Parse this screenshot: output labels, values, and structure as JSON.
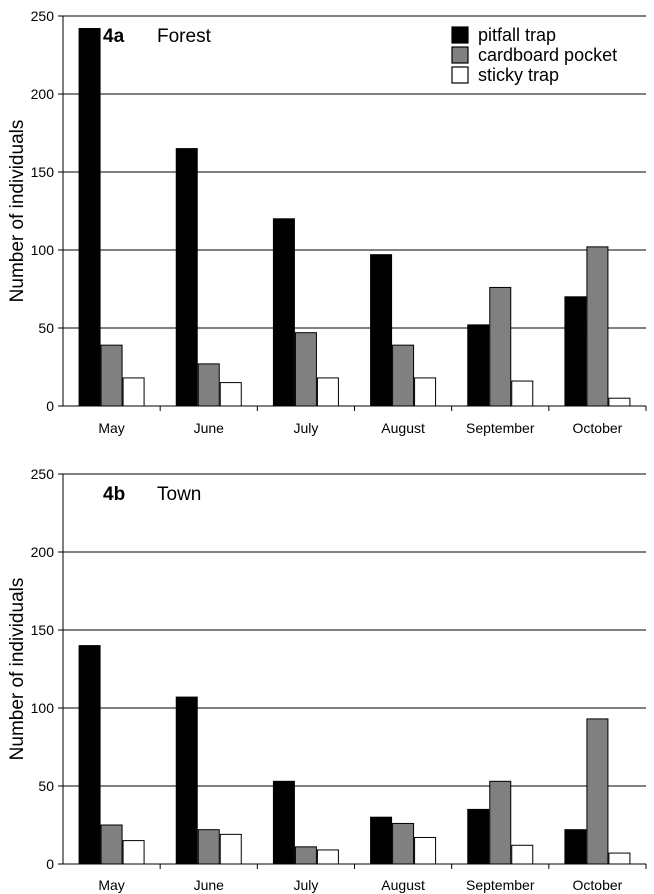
{
  "chart_data": [
    {
      "type": "bar",
      "panel_label": "4a",
      "panel_name": "Forest",
      "ylabel": "Number of individuals",
      "ylim": [
        0,
        250
      ],
      "yticks": [
        0,
        50,
        100,
        150,
        200,
        250
      ],
      "grid": true,
      "legend_position": "top-right",
      "categories": [
        "May",
        "June",
        "July",
        "August",
        "September",
        "October"
      ],
      "series": [
        {
          "name": "pitfall trap",
          "color": "#000000",
          "values": [
            242,
            165,
            120,
            97,
            52,
            70
          ]
        },
        {
          "name": "cardboard pocket",
          "color": "#808080",
          "values": [
            39,
            27,
            47,
            39,
            76,
            102
          ]
        },
        {
          "name": "sticky trap",
          "color": "#ffffff",
          "values": [
            18,
            15,
            18,
            18,
            16,
            5
          ]
        }
      ]
    },
    {
      "type": "bar",
      "panel_label": "4b",
      "panel_name": "Town",
      "ylabel": "Number of individuals",
      "ylim": [
        0,
        250
      ],
      "yticks": [
        0,
        50,
        100,
        150,
        200,
        250
      ],
      "grid": true,
      "categories": [
        "May",
        "June",
        "July",
        "August",
        "September",
        "October"
      ],
      "series": [
        {
          "name": "pitfall trap",
          "color": "#000000",
          "values": [
            140,
            107,
            53,
            30,
            35,
            22
          ]
        },
        {
          "name": "cardboard pocket",
          "color": "#808080",
          "values": [
            25,
            22,
            11,
            26,
            53,
            93
          ]
        },
        {
          "name": "sticky trap",
          "color": "#ffffff",
          "values": [
            15,
            19,
            9,
            17,
            12,
            7
          ]
        }
      ]
    }
  ]
}
